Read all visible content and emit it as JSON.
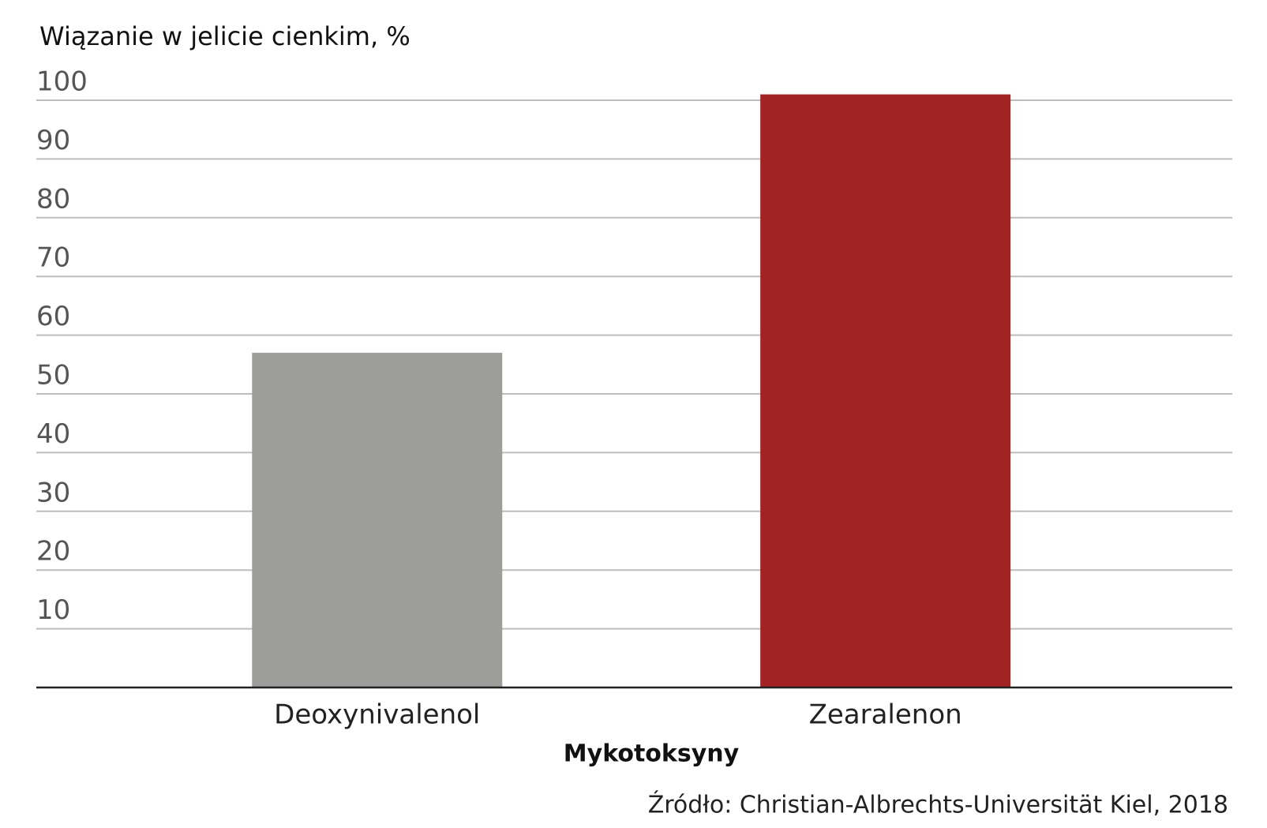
{
  "chart_data": {
    "type": "bar",
    "title": "Wiązanie w jelicie cienkim, %",
    "categories": [
      "Deoxynivalenol",
      "Zearalenon"
    ],
    "values": [
      57,
      101
    ],
    "colors": [
      "#9d9d9b",
      "#a32325"
    ],
    "ylim": [
      0,
      101
    ],
    "yticks": [
      10,
      20,
      30,
      40,
      50,
      60,
      70,
      80,
      90,
      100
    ],
    "grid": true,
    "x_label": "Mykotoksyny",
    "source": "Źródło: Christian-Albrechts-Universität Kiel, 2018"
  }
}
